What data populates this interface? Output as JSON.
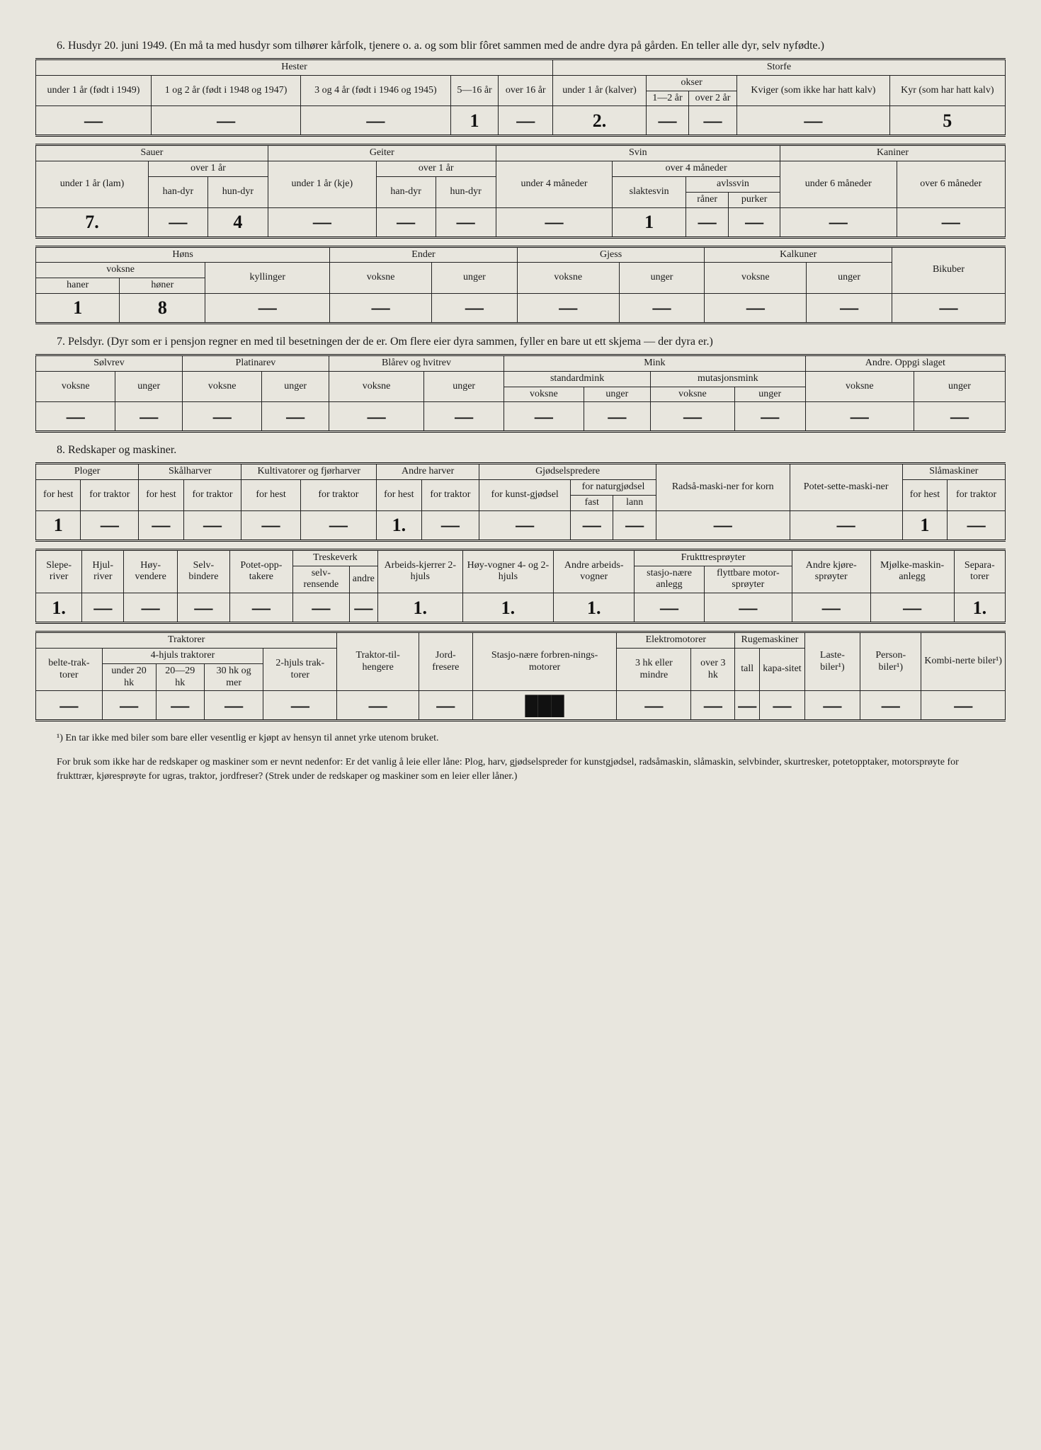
{
  "section6": {
    "title": "6. Husdyr 20. juni 1949. (En må ta med husdyr som tilhører kårfolk, tjenere o. a. og som blir fôret sammen med de andre dyra på gården. En teller alle dyr, selv nyfødte.)",
    "t1": {
      "groups": {
        "hester": "Hester",
        "storfe": "Storfe"
      },
      "h": {
        "h1": "under 1 år (født i 1949)",
        "h2": "1 og 2 år (født i 1948 og 1947)",
        "h3": "3 og 4 år (født i 1946 og 1945)",
        "h4": "5—16 år",
        "h5": "over 16 år",
        "s1": "under 1 år (kalver)",
        "okser": "okser",
        "s2": "1—2 år",
        "s3": "over 2 år",
        "s4": "Kviger (som ikke har hatt kalv)",
        "s5": "Kyr (som har hatt kalv)"
      },
      "v": {
        "c1": "—",
        "c2": "—",
        "c3": "—",
        "c4": "1",
        "c5": "—",
        "c6": "2.",
        "c7": "—",
        "c8": "—",
        "c9": "—",
        "c10": "5"
      }
    },
    "t2": {
      "groups": {
        "sauer": "Sauer",
        "geiter": "Geiter",
        "svin": "Svin",
        "kaniner": "Kaniner"
      },
      "h": {
        "sa1": "under 1 år (lam)",
        "over1": "over 1 år",
        "hand": "han-dyr",
        "hund": "hun-dyr",
        "ge1": "under 1 år (kje)",
        "sv1": "under 4 måneder",
        "over4": "over 4 måneder",
        "slakt": "slaktesvin",
        "avls": "avlssvin",
        "raner": "råner",
        "purker": "purker",
        "ka1": "under 6 måneder",
        "ka2": "over 6 måneder"
      },
      "v": {
        "c1": "7.",
        "c2": "—",
        "c3": "4",
        "c4": "—",
        "c5": "—",
        "c6": "—",
        "c7": "—",
        "c8": "1",
        "c9": "—",
        "c10": "—",
        "c11": "—",
        "c12": "—"
      }
    },
    "t3": {
      "groups": {
        "hons": "Høns",
        "ender": "Ender",
        "gjess": "Gjess",
        "kalkuner": "Kalkuner",
        "bikuber": "Bikuber"
      },
      "h": {
        "voksne": "voksne",
        "haner": "haner",
        "honer": "høner",
        "kyll": "kyllinger",
        "unger": "unger"
      },
      "v": {
        "c1": "1",
        "c2": "8",
        "c3": "—",
        "c4": "—",
        "c5": "—",
        "c6": "—",
        "c7": "—",
        "c8": "—",
        "c9": "—",
        "c10": "—"
      }
    }
  },
  "section7": {
    "title": "7. Pelsdyr. (Dyr som er i pensjon regner en med til besetningen der de er. Om flere eier dyra sammen, fyller en bare ut ett skjema — der dyra er.)",
    "h": {
      "solvrev": "Sølvrev",
      "platinarev": "Platinarev",
      "blarev": "Blårev og hvitrev",
      "mink": "Mink",
      "std": "standardmink",
      "mut": "mutasjonsmink",
      "andre": "Andre. Oppgi slaget",
      "voksne": "voksne",
      "unger": "unger"
    },
    "v": {
      "c1": "—",
      "c2": "—",
      "c3": "—",
      "c4": "—",
      "c5": "—",
      "c6": "—",
      "c7": "—",
      "c8": "—",
      "c9": "—",
      "c10": "—",
      "c11": "—",
      "c12": "—"
    }
  },
  "section8": {
    "title": "8. Redskaper og maskiner.",
    "t1": {
      "h": {
        "ploger": "Ploger",
        "skalharver": "Skålharver",
        "kult": "Kultivatorer og fjørharver",
        "andreharver": "Andre harver",
        "gjod": "Gjødselspredere",
        "radsa": "Radså-maski-ner for korn",
        "potet": "Potet-sette-maski-ner",
        "sla": "Slåmaskiner",
        "forhest": "for hest",
        "fortraktor": "for traktor",
        "kunst": "for kunst-gjødsel",
        "natur": "for naturgjødsel",
        "fast": "fast",
        "lann": "lann"
      },
      "v": {
        "c1": "1",
        "c2": "—",
        "c3": "—",
        "c4": "—",
        "c5": "—",
        "c6": "—",
        "c7": "1.",
        "c8": "—",
        "c9": "—",
        "c10": "—",
        "c11": "—",
        "c12": "—",
        "c13": "—",
        "c14": "1",
        "c15": "—"
      }
    },
    "t2": {
      "h": {
        "slepe": "Slepe-river",
        "hjul": "Hjul-river",
        "hoyv": "Høy-vendere",
        "selvb": "Selv-bindere",
        "potopp": "Potet-opp-takere",
        "treske": "Treskeverk",
        "selvr": "selv-rensende",
        "andre": "andre",
        "arbeid": "Arbeids-kjerrer 2-hjuls",
        "hoyvogn": "Høy-vogner 4- og 2-hjuls",
        "andrearbeid": "Andre arbeids-vogner",
        "frukt": "Frukttresprøyter",
        "stasj": "stasjo-nære anlegg",
        "flytt": "flyttbare motor-sprøyter",
        "andrekjore": "Andre kjøre-sprøyter",
        "mjolke": "Mjølke-maskin-anlegg",
        "separ": "Separa-torer"
      },
      "v": {
        "c1": "1.",
        "c2": "—",
        "c3": "—",
        "c4": "—",
        "c5": "—",
        "c6": "—",
        "c7": "—",
        "c8": "1.",
        "c9": "1.",
        "c10": "1.",
        "c11": "—",
        "c12": "—",
        "c13": "—",
        "c14": "—",
        "c15": "1."
      }
    },
    "t3": {
      "h": {
        "traktorer": "Traktorer",
        "belte": "belte-trak-torer",
        "fourhjuls": "4-hjuls traktorer",
        "u20": "under 20 hk",
        "hk2029": "20—29 hk",
        "hk30": "30 hk og mer",
        "tohjuls": "2-hjuls trak-torer",
        "tilh": "Traktor-til-hengere",
        "jord": "Jord-fresere",
        "stasjmotor": "Stasjo-nære forbren-nings-motorer",
        "elektro": "Elektromotorer",
        "hk3": "3 hk eller mindre",
        "over3": "over 3 hk",
        "ruge": "Rugemaskiner",
        "tall": "tall",
        "kapa": "kapa-sitet",
        "laste": "Laste-biler¹)",
        "person": "Person-biler¹)",
        "kombi": "Kombi-nerte biler¹)"
      },
      "v": {
        "c1": "—",
        "c2": "—",
        "c3": "—",
        "c4": "—",
        "c5": "—",
        "c6": "—",
        "c7": "—",
        "c8": "███",
        "c9": "—",
        "c10": "—",
        "c11": "—",
        "c12": "—",
        "c13": "—",
        "c14": "—",
        "c15": "—"
      }
    }
  },
  "footnotes": {
    "f1": "¹) En tar ikke med biler som bare eller vesentlig er kjøpt av hensyn til annet yrke utenom bruket.",
    "f2": "For bruk som ikke har de redskaper og maskiner som er nevnt nedenfor: Er det vanlig å leie eller låne: Plog, harv, gjødselspreder for kunstgjødsel, radsåmaskin, slåmaskin, selvbinder, skurtresker, potetopptaker, motorsprøyte for frukttrær, kjøresprøyte for ugras, traktor, jordfreser? (Strek under de redskaper og maskiner som en leier eller låner.)"
  }
}
